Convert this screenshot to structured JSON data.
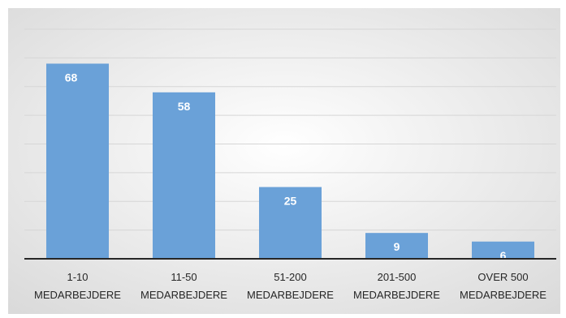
{
  "chart_data": {
    "type": "bar",
    "title": "",
    "xlabel": "",
    "ylabel": "",
    "categories": [
      [
        "1-10",
        "MEDARBEJDERE"
      ],
      [
        "11-50",
        "MEDARBEJDERE"
      ],
      [
        "51-200",
        "MEDARBEJDERE"
      ],
      [
        "201-500",
        "MEDARBEJDERE"
      ],
      [
        "OVER 500",
        "MEDARBEJDERE"
      ]
    ],
    "values": [
      68,
      58,
      25,
      9,
      6
    ],
    "ylim": [
      0,
      80
    ],
    "grid": true,
    "y_tick_labels_visible": false,
    "data_labels": true,
    "legend": "none"
  },
  "colors": {
    "bar": "#6aa1d8",
    "gridline": "#d6d6d6",
    "axis": "#262626",
    "data_label": "#ffffff",
    "category_label": "#262626",
    "plot_bg_center": "#ffffff",
    "plot_bg_edge": "#d9d9d9"
  }
}
